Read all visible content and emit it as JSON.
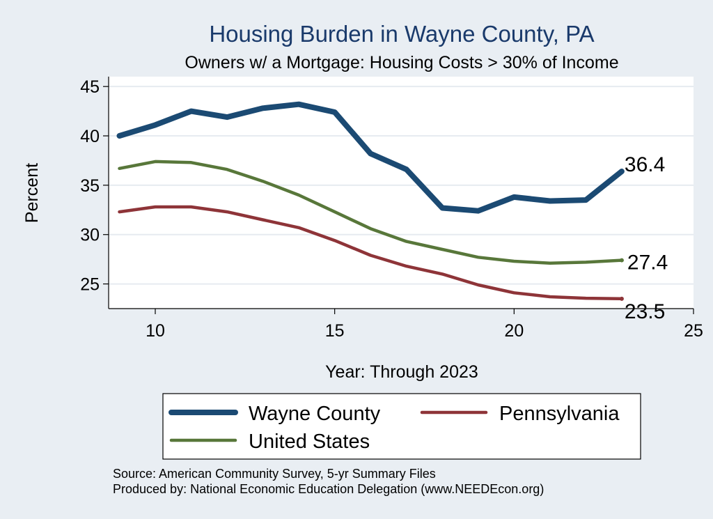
{
  "chart_data": {
    "type": "line",
    "title": "Housing Burden in Wayne County, PA",
    "subtitle": "Owners w/ a Mortgage: Housing Costs > 30% of Income",
    "xlabel": "Year: Through 2023",
    "ylabel": "Percent",
    "xlim": [
      8.7,
      25
    ],
    "ylim": [
      22.5,
      46
    ],
    "xticks": [
      10,
      15,
      20,
      25
    ],
    "yticks": [
      25,
      30,
      35,
      40,
      45
    ],
    "grid": true,
    "legend_position": "bottom",
    "x": [
      9,
      10,
      11,
      12,
      13,
      14,
      15,
      16,
      17,
      18,
      19,
      20,
      21,
      22,
      23
    ],
    "series": [
      {
        "name": "Wayne County",
        "color": "#1b4a73",
        "values": [
          40.0,
          41.1,
          42.5,
          41.9,
          42.8,
          43.2,
          42.4,
          38.2,
          36.6,
          32.7,
          32.4,
          33.8,
          33.4,
          33.5,
          36.4
        ],
        "end_label": "36.4"
      },
      {
        "name": "Pennsylvania",
        "color": "#8e3438",
        "values": [
          32.3,
          32.8,
          32.8,
          32.3,
          31.5,
          30.7,
          29.4,
          27.9,
          26.8,
          26.0,
          24.9,
          24.1,
          23.7,
          23.55,
          23.5
        ],
        "end_label": "23.5"
      },
      {
        "name": "United States",
        "color": "#58773a",
        "values": [
          36.7,
          37.4,
          37.3,
          36.6,
          35.4,
          34.0,
          32.3,
          30.6,
          29.3,
          28.5,
          27.7,
          27.3,
          27.1,
          27.2,
          27.4
        ],
        "end_label": "27.4"
      }
    ],
    "notes": [
      "Source: American Community Survey, 5-yr Summary Files",
      "Produced by: National Economic Education Delegation (www.NEEDEcon.org)"
    ]
  }
}
